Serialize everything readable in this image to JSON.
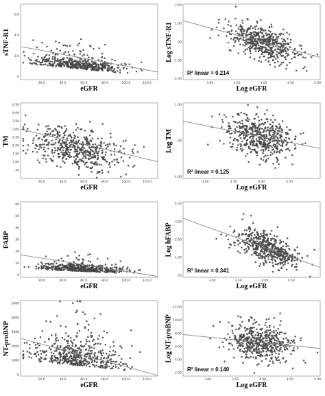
{
  "colors": {
    "point": "#555555",
    "point_stroke": "#222222",
    "fit_line": "#888888",
    "axis": "#777777"
  },
  "chart_data": [
    {
      "type": "scatter",
      "title": "",
      "xlabel": "eGFR",
      "ylabel": "sTNF-R1",
      "xlim": [
        0,
        130
      ],
      "ylim": [
        -0.3,
        7
      ],
      "xticks": [
        "20.0",
        "40.0",
        "60.0",
        "80.0",
        "100.0",
        "120.0"
      ],
      "yticks": [
        "0",
        "2.0",
        "4.0",
        "6.0"
      ],
      "fit": {
        "intercept": 2.9,
        "slope": -0.019
      },
      "cloud": {
        "center_x": 55,
        "sd_x": 22,
        "base_y": 0.9,
        "sd_y": 0.5,
        "trend": -0.01,
        "n": 480,
        "skew": true
      },
      "r2": ""
    },
    {
      "type": "scatter",
      "title": "",
      "xlabel": "Log eGFR",
      "ylabel": "Log sTNF-R1",
      "xlim": [
        2.5,
        5.05
      ],
      "ylim": [
        -2.05,
        2.05
      ],
      "xticks": [
        "3.00",
        "3.50",
        "4.00",
        "4.50",
        "5.00"
      ],
      "yticks": [
        "-2.00",
        "-1.00",
        ".00",
        "1.00",
        "2.00"
      ],
      "fit": {
        "intercept": 3.1,
        "slope": -0.78
      },
      "cloud": {
        "center_x": 4.0,
        "sd_x": 0.32,
        "base_y": -0.05,
        "sd_y": 0.45,
        "trend": -0.9,
        "n": 520,
        "skew": false
      },
      "r2": "R² linear = 0.214"
    },
    {
      "type": "scatter",
      "title": "",
      "xlabel": "eGFR",
      "ylabel": "TM",
      "xlim": [
        0,
        130
      ],
      "ylim": [
        0,
        4.6
      ],
      "xticks": [
        "20.0",
        "40.0",
        "60.0",
        "80.0",
        "100.0",
        "120.0"
      ],
      "yticks": [
        ".50",
        "1.00",
        "1.50",
        "2.00",
        "2.50",
        "3.00",
        "3.50",
        "4.00",
        "4.50"
      ],
      "fit": {
        "intercept": 3.0,
        "slope": -0.0152
      },
      "cloud": {
        "center_x": 52,
        "sd_x": 22,
        "base_y": 1.85,
        "sd_y": 0.6,
        "trend": -0.012,
        "n": 520,
        "skew": false
      },
      "r2": ""
    },
    {
      "type": "scatter",
      "title": "",
      "xlabel": "Log eGFR",
      "ylabel": "Log TM",
      "xlim": [
        2.6,
        5.05
      ],
      "ylim": [
        -1.05,
        1.05
      ],
      "xticks": [
        "3.00",
        "3.50",
        "4.00",
        "4.50"
      ],
      "yticks": [
        "-1.00",
        ".00",
        "1.00"
      ],
      "fit": {
        "intercept": 1.35,
        "slope": -0.31
      },
      "cloud": {
        "center_x": 4.0,
        "sd_x": 0.3,
        "base_y": 0.12,
        "sd_y": 0.3,
        "trend": -0.35,
        "n": 520,
        "skew": false
      },
      "r2": "R² linear = 0.125"
    },
    {
      "type": "scatter",
      "title": "",
      "xlabel": "eGFR",
      "ylabel": "FABP",
      "xlim": [
        0,
        130
      ],
      "ylim": [
        -2,
        62
      ],
      "xticks": [
        "20.0",
        "40.0",
        "60.0",
        "80.0",
        "100.0",
        "120.0"
      ],
      "yticks": [
        "0",
        "10",
        "20",
        "30",
        "40",
        "50",
        "60"
      ],
      "fit": {
        "intercept": 17,
        "slope": -0.14
      },
      "cloud": {
        "center_x": 58,
        "sd_x": 20,
        "base_y": 4,
        "sd_y": 3,
        "trend": -0.04,
        "n": 480,
        "skew": true
      },
      "r2": ""
    },
    {
      "type": "scatter",
      "title": "",
      "xlabel": "Log eGFR",
      "ylabel": "Log hFABP",
      "xlim": [
        2.45,
        5.05
      ],
      "ylim": [
        -0.1,
        4.1
      ],
      "xticks": [
        "3.00",
        "3.50",
        "4.00",
        "4.50"
      ],
      "yticks": [
        ".00",
        "1.00",
        "2.00",
        "3.00",
        "4.00"
      ],
      "fit": {
        "intercept": 5.75,
        "slope": -1.05
      },
      "cloud": {
        "center_x": 4.05,
        "sd_x": 0.3,
        "base_y": 1.5,
        "sd_y": 0.42,
        "trend": -1.1,
        "n": 520,
        "skew": false
      },
      "r2": "R² linear = 0.341"
    },
    {
      "type": "scatter",
      "title": "",
      "xlabel": "eGFR",
      "ylabel": "NT-proBNP",
      "xlim": [
        0,
        130
      ],
      "ylim": [
        -100,
        5200
      ],
      "xticks": [
        "20.0",
        "40.0",
        "60.0",
        "80.0",
        "100.0",
        "120.0"
      ],
      "yticks": [
        "0",
        "1000",
        "2000",
        "3000",
        "4000",
        "5000"
      ],
      "fit": {
        "intercept": 2550,
        "slope": -20
      },
      "cloud": {
        "center_x": 55,
        "sd_x": 22,
        "base_y": 900,
        "sd_y": 900,
        "trend": -8,
        "n": 520,
        "skew": true
      },
      "r2": ""
    },
    {
      "type": "scatter",
      "title": "",
      "xlabel": "Log eGFR",
      "ylabel": "Log NT-proBNP",
      "xlim": [
        2.55,
        5.05
      ],
      "ylim": [
        1.5,
        13
      ],
      "xticks": [
        "3.00",
        "3.50",
        "4.00",
        "4.50",
        "5.00"
      ],
      "yticks": [
        "2.00",
        "4.00",
        "6.00",
        "8.00",
        "10.00",
        "12.00"
      ],
      "fit": {
        "intercept": 10.0,
        "slope": -0.85
      },
      "cloud": {
        "center_x": 3.95,
        "sd_x": 0.3,
        "base_y": 6.6,
        "sd_y": 1.35,
        "trend": -0.9,
        "n": 520,
        "skew": false
      },
      "r2": "R² linear = 0.140"
    }
  ]
}
